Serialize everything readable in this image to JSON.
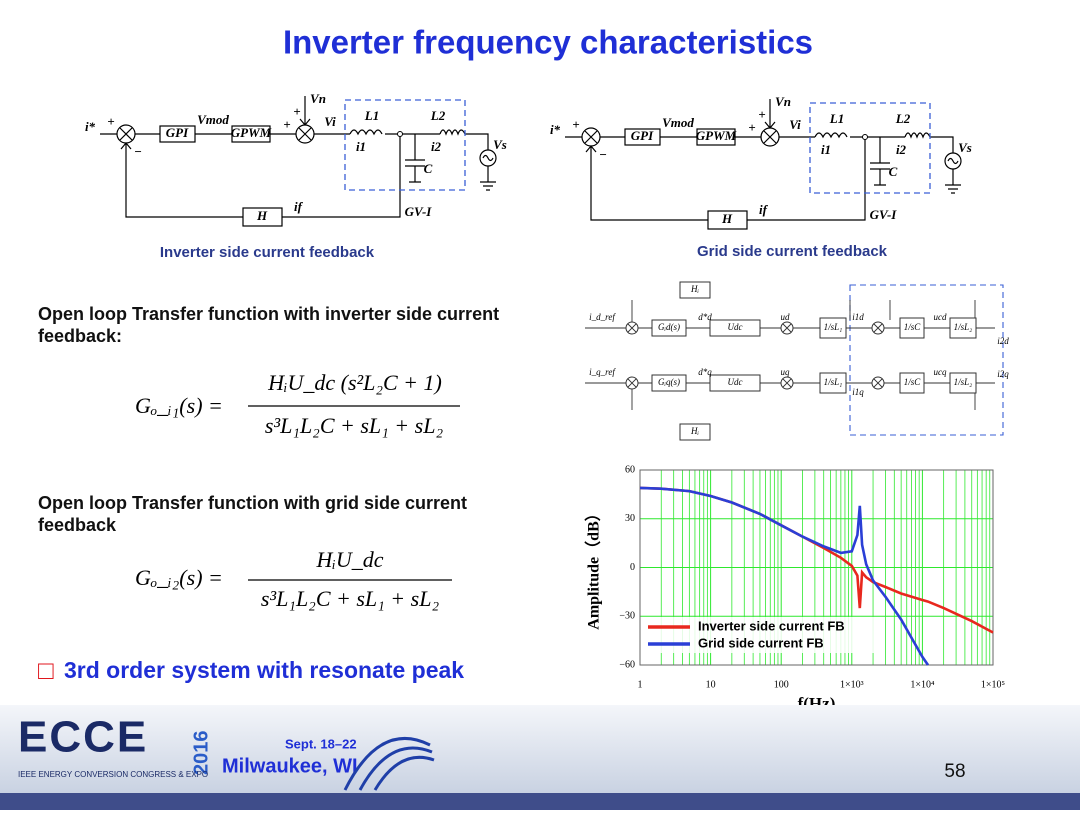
{
  "title": "Inverter frequency characteristics",
  "diagrams": [
    {
      "caption": "Inverter side current feedback",
      "labels": [
        "i*",
        "+",
        "−",
        "GPI",
        "Vmod",
        "GPWM",
        "+",
        "Vn",
        "+",
        "Vi",
        "L1",
        "i1",
        "L2",
        "i2",
        "C",
        "Vs",
        "H",
        "if",
        "GV-I"
      ]
    },
    {
      "caption": "Grid side current feedback",
      "labels": [
        "i*",
        "+",
        "−",
        "GPI",
        "Vmod",
        "GPWM",
        "+",
        "Vn",
        "+",
        "Vi",
        "L1",
        "i1",
        "L2",
        "i2",
        "C",
        "Vs",
        "H",
        "if",
        "GV-I"
      ]
    }
  ],
  "dq_diagram": {
    "labels": [
      "Hᵢ",
      "i_d_ref",
      "Gᵢd(s)",
      "d*d",
      "Udc",
      "ud",
      "1/sL₁",
      "i1d",
      "1/sC",
      "ucd",
      "1/sL₂",
      "i2d",
      "i_q_ref",
      "Gᵢq(s)",
      "d*q",
      "Udc",
      "uq",
      "1/sL₁",
      "i1q",
      "1/sC",
      "ucq",
      "1/sL₂",
      "i2q",
      "Hᵢ"
    ]
  },
  "sections": [
    {
      "heading": "Open loop Transfer function with inverter side current feedback:",
      "formula": {
        "lhs": "Gₒ_ᵢ₁(s) =",
        "numerator": "HᵢU_dc (s²L₂C + 1)",
        "denominator": "s³L₁L₂C + sL₁ + sL₂"
      }
    },
    {
      "heading": "Open loop Transfer function with grid side current feedback",
      "formula": {
        "lhs": "Gₒ_ᵢ₂(s) =",
        "numerator": "HᵢU_dc",
        "denominator": "s³L₁L₂C + sL₁ + sL₂"
      }
    }
  ],
  "highlight": {
    "box": "□",
    "text": "3rd order system with resonate peak"
  },
  "chart_data": {
    "type": "line",
    "xlabel": "f(Hz)",
    "ylabel": "Amplitude（dB）",
    "xlog": true,
    "grid": true,
    "grid_color": "#2ee82e",
    "legend": "lower-left",
    "x": [
      1,
      2,
      5,
      10,
      20,
      50,
      100,
      200,
      400,
      700,
      1000,
      1200,
      1300,
      1400,
      1600,
      2000,
      3000,
      5000,
      10000,
      12000,
      20000,
      50000,
      100000
    ],
    "series": [
      {
        "name": "Inverter side current FB",
        "color": "#e8281e",
        "values": [
          49,
          48.5,
          47,
          44,
          40,
          33,
          26,
          19,
          12,
          6,
          1,
          -5,
          -25,
          -3,
          -6,
          -9,
          -12,
          -16,
          -20,
          -21,
          -25,
          -33,
          -40
        ]
      },
      {
        "name": "Grid side current FB",
        "color": "#2a3fd6",
        "values": [
          49,
          48.5,
          47,
          44,
          40,
          33,
          26,
          19,
          13,
          9,
          10,
          20,
          38,
          14,
          2,
          -8,
          -18,
          -32,
          -55,
          -60,
          null,
          null,
          null
        ]
      }
    ],
    "xlim": [
      1,
      100000
    ],
    "xticks": [
      1,
      10,
      100,
      {
        "value": 1000,
        "label": "1×10³"
      },
      {
        "value": 10000,
        "label": "1×10⁴"
      },
      {
        "value": 100000,
        "label": "1×10⁵"
      }
    ],
    "ylim": [
      -60,
      60
    ],
    "yticks": [
      {
        "value": -60,
        "label": "−60"
      },
      {
        "value": -30,
        "label": "−30"
      },
      0,
      30,
      60
    ]
  },
  "footer": {
    "logo": "ECCE",
    "year": "2016",
    "org": "IEEE ENERGY CONVERSION CONGRESS & EXPO",
    "dates": "Sept. 18–22",
    "city": "Milwaukee, WI",
    "page": "58"
  }
}
